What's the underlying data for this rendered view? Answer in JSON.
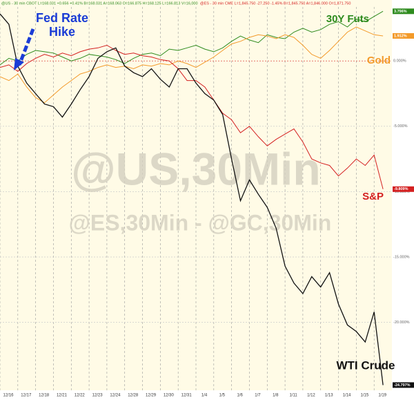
{
  "chart_data": {
    "type": "line",
    "header": [
      "@US - 30 min CBOT L=168.031 +0.656 +0.41% B=168.031 A=168.063 O=166.875 H=168.125 L=166.813 V=16,000",
      "@ES - 30 min CME L=1,845.750 -27.250 -1.45% B=1,845.750 A=1,846.000 O=1,871.750"
    ],
    "watermark": [
      "@US,30Min",
      "@ES,30Min - @GC,30Min"
    ],
    "annotation": [
      "Fed Rate",
      "Hike"
    ],
    "x": [
      0,
      0.5,
      1,
      1.5,
      2,
      2.5,
      3,
      3.5,
      4,
      4.5,
      5,
      5.5,
      6,
      6.5,
      7,
      7.5,
      8,
      8.5,
      9,
      9.5,
      10,
      10.5,
      11,
      11.5,
      12,
      12.5,
      13,
      13.5,
      14,
      14.5,
      15,
      15.5,
      16,
      16.5,
      17,
      17.5,
      18,
      18.5,
      19,
      19.5,
      20,
      20.5,
      21,
      21.5
    ],
    "xlim": [
      0,
      22
    ],
    "xticks": [
      {
        "value": 0,
        "label": "12/16"
      },
      {
        "value": 1,
        "label": "12/17"
      },
      {
        "value": 2,
        "label": "12/18"
      },
      {
        "value": 3,
        "label": "12/21"
      },
      {
        "value": 4,
        "label": "12/22"
      },
      {
        "value": 5,
        "label": "12/23"
      },
      {
        "value": 6,
        "label": "12/24"
      },
      {
        "value": 7,
        "label": "12/28"
      },
      {
        "value": 8,
        "label": "12/29"
      },
      {
        "value": 9,
        "label": "12/30"
      },
      {
        "value": 10,
        "label": "12/31"
      },
      {
        "value": 11,
        "label": "1/4"
      },
      {
        "value": 12,
        "label": "1/5"
      },
      {
        "value": 13,
        "label": "1/6"
      },
      {
        "value": 14,
        "label": "1/7"
      },
      {
        "value": 15,
        "label": "1/8"
      },
      {
        "value": 16,
        "label": "1/11"
      },
      {
        "value": 17,
        "label": "1/12"
      },
      {
        "value": 18,
        "label": "1/13"
      },
      {
        "value": 19,
        "label": "1/14"
      },
      {
        "value": 20,
        "label": "1/15"
      },
      {
        "value": 21,
        "label": "1/19"
      }
    ],
    "ylim": [
      -25.2,
      4.66
    ],
    "yticks": [
      {
        "value": 0,
        "label": "0.000%"
      },
      {
        "value": -5,
        "label": "-5.000%"
      },
      {
        "value": -10,
        "label": "-10.000%"
      },
      {
        "value": -15,
        "label": "-15.000%"
      },
      {
        "value": -20,
        "label": "-20.000%"
      }
    ],
    "grid": true,
    "series": [
      {
        "name": "30Y Futs",
        "color": "#2e8b1e",
        "values": [
          -0.3,
          0.2,
          0.0,
          0.5,
          0.8,
          0.7,
          0.6,
          0.3,
          0.0,
          0.2,
          0.5,
          0.4,
          0.3,
          0.1,
          -0.2,
          0.2,
          0.5,
          0.6,
          0.4,
          0.9,
          0.8,
          1.0,
          1.2,
          0.9,
          0.7,
          1.0,
          1.5,
          1.9,
          1.6,
          1.4,
          2.0,
          1.8,
          1.7,
          2.2,
          2.5,
          2.2,
          2.4,
          2.8,
          3.0,
          2.6,
          3.2,
          3.0,
          3.4,
          3.796
        ],
        "value_labels": [
          null,
          null,
          null,
          null,
          null,
          null,
          null,
          null,
          null,
          null,
          null,
          null,
          null,
          null,
          null,
          null,
          null,
          null,
          null,
          null,
          null,
          null,
          null,
          null,
          null,
          null,
          null,
          null,
          null,
          null,
          null,
          null,
          null,
          null,
          null,
          null,
          null,
          null,
          null,
          null,
          null,
          null,
          null,
          "3.796%"
        ]
      },
      {
        "name": "Gold",
        "color": "#f39a2a",
        "values": [
          -1.2,
          -1.5,
          -1.0,
          -2.0,
          -2.8,
          -3.2,
          -2.6,
          -2.0,
          -1.5,
          -1.0,
          -0.8,
          -0.5,
          -0.3,
          -0.5,
          -0.4,
          -0.6,
          -0.3,
          -0.4,
          -0.2,
          -0.3,
          0.0,
          -0.2,
          -0.5,
          -0.1,
          0.3,
          0.8,
          1.3,
          1.5,
          1.8,
          2.0,
          1.9,
          1.7,
          2.0,
          1.8,
          1.2,
          0.5,
          0.2,
          0.8,
          1.5,
          2.2,
          2.6,
          2.3,
          2.0,
          1.912
        ],
        "value_labels": [
          null,
          null,
          null,
          null,
          null,
          null,
          null,
          null,
          null,
          null,
          null,
          null,
          null,
          null,
          null,
          null,
          null,
          null,
          null,
          null,
          null,
          null,
          null,
          null,
          null,
          null,
          null,
          null,
          null,
          null,
          null,
          null,
          null,
          null,
          null,
          null,
          null,
          null,
          null,
          null,
          null,
          null,
          null,
          "1.912%"
        ]
      },
      {
        "name": "S&P",
        "color": "#d42020",
        "values": [
          -0.5,
          -0.3,
          -0.8,
          -0.2,
          0.2,
          0.5,
          0.3,
          0.6,
          0.4,
          0.7,
          0.9,
          1.0,
          1.2,
          0.8,
          0.5,
          0.6,
          0.4,
          0.3,
          0.1,
          0.0,
          -0.6,
          -1.5,
          -1.5,
          -2.0,
          -3.0,
          -4.0,
          -4.5,
          -5.5,
          -5.0,
          -5.8,
          -6.5,
          -6.0,
          -5.6,
          -5.2,
          -6.2,
          -7.5,
          -7.8,
          -8.0,
          -8.8,
          -8.2,
          -7.5,
          -8.0,
          -7.2,
          -9.809
        ],
        "value_labels": [
          null,
          null,
          null,
          null,
          null,
          null,
          null,
          null,
          null,
          null,
          null,
          null,
          null,
          null,
          null,
          null,
          null,
          null,
          null,
          null,
          null,
          null,
          null,
          null,
          null,
          null,
          null,
          null,
          null,
          null,
          null,
          null,
          null,
          null,
          null,
          null,
          null,
          null,
          null,
          null,
          null,
          null,
          null,
          "-9.809%"
        ]
      },
      {
        "name": "WTI Crude",
        "color": "#111111",
        "values": [
          3.6,
          2.8,
          -0.4,
          -1.7,
          -2.5,
          -3.3,
          -3.5,
          -4.3,
          -3.3,
          -2.2,
          -1.2,
          0.2,
          0.7,
          1.0,
          -0.4,
          -0.9,
          -1.2,
          -0.6,
          -1.4,
          -2.0,
          -0.6,
          -0.6,
          -1.7,
          -2.5,
          -3.0,
          -4.1,
          -7.5,
          -10.7,
          -9.1,
          -10.2,
          -11.2,
          -12.8,
          -15.7,
          -17.0,
          -17.8,
          -16.5,
          -17.3,
          -16.2,
          -18.6,
          -20.2,
          -20.7,
          -21.5,
          -19.2,
          -24.797
        ],
        "value_labels": [
          null,
          null,
          null,
          null,
          null,
          null,
          null,
          null,
          null,
          null,
          null,
          null,
          null,
          null,
          null,
          null,
          null,
          null,
          null,
          null,
          null,
          null,
          null,
          null,
          null,
          null,
          null,
          null,
          null,
          null,
          null,
          null,
          null,
          null,
          null,
          null,
          null,
          null,
          null,
          null,
          null,
          null,
          null,
          "-24.797%"
        ]
      }
    ]
  }
}
